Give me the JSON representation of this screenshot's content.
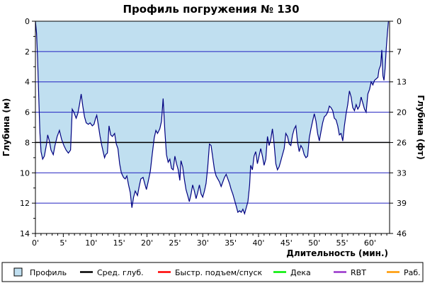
{
  "chart_data": {
    "type": "area",
    "title": "Профиль погружения № 130",
    "xlabel": "Длительность (мин.)",
    "ylabel": "Глубина (м)",
    "ylabel_right": "Глубина (фт)",
    "xlim": [
      0,
      63.5
    ],
    "ylim": [
      0,
      14
    ],
    "y_inverted": true,
    "x_ticks": [
      0,
      5,
      10,
      15,
      20,
      25,
      30,
      35,
      40,
      45,
      50,
      55,
      60
    ],
    "x_tick_labels": [
      "0'",
      "5'",
      "10'",
      "15'",
      "20'",
      "25'",
      "30'",
      "35'",
      "40'",
      "45'",
      "50'",
      "55'",
      "60'"
    ],
    "y_ticks": [
      0,
      2,
      4,
      6,
      8,
      10,
      12,
      14
    ],
    "y_tick_labels": [
      "0",
      "2",
      "4",
      "6",
      "8",
      "10",
      "12",
      "14"
    ],
    "y_ticks_right": [
      0,
      2,
      4,
      6,
      8,
      10,
      12,
      14
    ],
    "y_tick_labels_right": [
      "0",
      "7",
      "13",
      "20",
      "26",
      "33",
      "39",
      "46"
    ],
    "grid": "horizontal",
    "average_depth": 8,
    "colors": {
      "profile_fill": "#c0dff0",
      "profile_line": "#000080",
      "grid_line": "#2020c0",
      "avg_line": "#000000",
      "fast_ascent": "#ff0000",
      "deco": "#00ee00",
      "rbt": "#9933cc",
      "work": "#ff9900"
    },
    "series": [
      {
        "name": "Профиль",
        "points": [
          [
            0,
            0
          ],
          [
            0.2,
            0.8
          ],
          [
            0.4,
            2.5
          ],
          [
            0.6,
            5
          ],
          [
            0.8,
            7.3
          ],
          [
            1,
            8.6
          ],
          [
            1.3,
            9.1
          ],
          [
            1.6,
            8.9
          ],
          [
            2,
            8.1
          ],
          [
            2.2,
            7.5
          ],
          [
            2.5,
            7.9
          ],
          [
            2.8,
            8.5
          ],
          [
            3.2,
            8.8
          ],
          [
            3.5,
            8.2
          ],
          [
            3.9,
            7.6
          ],
          [
            4.3,
            7.2
          ],
          [
            4.7,
            7.8
          ],
          [
            5.1,
            8.2
          ],
          [
            5.5,
            8.5
          ],
          [
            5.9,
            8.7
          ],
          [
            6.3,
            8.5
          ],
          [
            6.6,
            5.8
          ],
          [
            6.9,
            6
          ],
          [
            7.3,
            6.4
          ],
          [
            7.6,
            6.1
          ],
          [
            7.9,
            5.5
          ],
          [
            8.2,
            4.8
          ],
          [
            8.5,
            5.6
          ],
          [
            8.8,
            6.3
          ],
          [
            9.1,
            6.7
          ],
          [
            9.5,
            6.8
          ],
          [
            9.8,
            6.7
          ],
          [
            10.2,
            6.9
          ],
          [
            10.5,
            6.8
          ],
          [
            10.8,
            6.4
          ],
          [
            11,
            6.2
          ],
          [
            11.3,
            6.9
          ],
          [
            11.6,
            7.6
          ],
          [
            11.9,
            8.2
          ],
          [
            12.2,
            8.7
          ],
          [
            12.4,
            9
          ],
          [
            12.6,
            8.8
          ],
          [
            12.9,
            8.7
          ],
          [
            13.2,
            6.9
          ],
          [
            13.5,
            7.5
          ],
          [
            13.8,
            7.6
          ],
          [
            14.2,
            7.4
          ],
          [
            14.5,
            8.1
          ],
          [
            14.8,
            8.4
          ],
          [
            15.1,
            9.4
          ],
          [
            15.4,
            10
          ],
          [
            15.8,
            10.3
          ],
          [
            16.1,
            10.4
          ],
          [
            16.4,
            10.2
          ],
          [
            16.7,
            10.8
          ],
          [
            17,
            11.3
          ],
          [
            17.3,
            12.3
          ],
          [
            17.6,
            11.6
          ],
          [
            17.9,
            11.2
          ],
          [
            18.3,
            11.5
          ],
          [
            18.6,
            10.9
          ],
          [
            18.9,
            10.4
          ],
          [
            19.3,
            10.3
          ],
          [
            19.6,
            10.7
          ],
          [
            19.9,
            11.1
          ],
          [
            20.2,
            10.6
          ],
          [
            20.6,
            9.9
          ],
          [
            20.9,
            8.9
          ],
          [
            21.3,
            7.7
          ],
          [
            21.6,
            7.2
          ],
          [
            21.9,
            7.4
          ],
          [
            22.3,
            7.1
          ],
          [
            22.6,
            6.6
          ],
          [
            22.9,
            5.1
          ],
          [
            23.2,
            7.2
          ],
          [
            23.5,
            8.8
          ],
          [
            23.8,
            9.3
          ],
          [
            24.1,
            9.1
          ],
          [
            24.4,
            9.7
          ],
          [
            24.7,
            9.8
          ],
          [
            25,
            8.9
          ],
          [
            25.3,
            9.4
          ],
          [
            25.6,
            9.8
          ],
          [
            25.9,
            10.5
          ],
          [
            26.1,
            9.2
          ],
          [
            26.4,
            9.6
          ],
          [
            26.7,
            10.4
          ],
          [
            27,
            11.1
          ],
          [
            27.3,
            11.5
          ],
          [
            27.6,
            11.9
          ],
          [
            27.9,
            11.4
          ],
          [
            28.2,
            10.8
          ],
          [
            28.5,
            11.2
          ],
          [
            28.8,
            11.7
          ],
          [
            29.1,
            11.3
          ],
          [
            29.4,
            10.8
          ],
          [
            29.7,
            11.4
          ],
          [
            30,
            11.6
          ],
          [
            30.3,
            11.2
          ],
          [
            30.6,
            10.7
          ],
          [
            30.9,
            9.6
          ],
          [
            31.2,
            8.1
          ],
          [
            31.5,
            8.2
          ],
          [
            31.8,
            9
          ],
          [
            32.1,
            9.8
          ],
          [
            32.4,
            10.2
          ],
          [
            32.7,
            10.4
          ],
          [
            33,
            10.6
          ],
          [
            33.3,
            10.9
          ],
          [
            33.6,
            10.6
          ],
          [
            33.9,
            10.3
          ],
          [
            34.2,
            10.1
          ],
          [
            34.5,
            10.4
          ],
          [
            34.8,
            10.7
          ],
          [
            35.1,
            11.1
          ],
          [
            35.4,
            11.4
          ],
          [
            35.7,
            11.8
          ],
          [
            36,
            12.2
          ],
          [
            36.3,
            12.6
          ],
          [
            36.6,
            12.5
          ],
          [
            36.9,
            12.6
          ],
          [
            37.2,
            12.4
          ],
          [
            37.5,
            12.7
          ],
          [
            37.8,
            12.3
          ],
          [
            38.1,
            11.9
          ],
          [
            38.4,
            10.8
          ],
          [
            38.6,
            9.5
          ],
          [
            38.9,
            9.8
          ],
          [
            39.2,
            8.9
          ],
          [
            39.5,
            8.6
          ],
          [
            39.8,
            9.4
          ],
          [
            40.1,
            8.9
          ],
          [
            40.4,
            8.4
          ],
          [
            40.7,
            8.9
          ],
          [
            41,
            9.5
          ],
          [
            41.3,
            9.1
          ],
          [
            41.6,
            7.6
          ],
          [
            41.9,
            8.2
          ],
          [
            42.2,
            7.8
          ],
          [
            42.5,
            7.1
          ],
          [
            42.8,
            8.1
          ],
          [
            43.1,
            9.4
          ],
          [
            43.4,
            9.8
          ],
          [
            43.7,
            9.6
          ],
          [
            44,
            9.2
          ],
          [
            44.3,
            8.8
          ],
          [
            44.6,
            8.4
          ],
          [
            44.9,
            7.4
          ],
          [
            45.2,
            7.6
          ],
          [
            45.5,
            8.1
          ],
          [
            45.8,
            8.2
          ],
          [
            46.1,
            7.5
          ],
          [
            46.4,
            7.1
          ],
          [
            46.7,
            6.9
          ],
          [
            47,
            8
          ],
          [
            47.3,
            8.6
          ],
          [
            47.6,
            8.2
          ],
          [
            47.9,
            8.4
          ],
          [
            48.2,
            8.8
          ],
          [
            48.5,
            9
          ],
          [
            48.8,
            8.9
          ],
          [
            49.1,
            7.7
          ],
          [
            49.4,
            7.1
          ],
          [
            49.7,
            6.6
          ],
          [
            50,
            6.1
          ],
          [
            50.3,
            6.6
          ],
          [
            50.6,
            7.4
          ],
          [
            50.9,
            7.9
          ],
          [
            51.2,
            7.3
          ],
          [
            51.5,
            6.7
          ],
          [
            51.8,
            6.3
          ],
          [
            52.1,
            6.2
          ],
          [
            52.4,
            6
          ],
          [
            52.7,
            5.6
          ],
          [
            53,
            5.7
          ],
          [
            53.3,
            5.9
          ],
          [
            53.6,
            6.4
          ],
          [
            53.9,
            6.5
          ],
          [
            54.2,
            6.9
          ],
          [
            54.5,
            7.5
          ],
          [
            54.8,
            7.4
          ],
          [
            55.1,
            7.9
          ],
          [
            55.4,
            6.9
          ],
          [
            55.7,
            6.1
          ],
          [
            56,
            5.5
          ],
          [
            56.3,
            4.6
          ],
          [
            56.6,
            5
          ],
          [
            56.9,
            5.7
          ],
          [
            57.2,
            5.9
          ],
          [
            57.5,
            5.5
          ],
          [
            57.8,
            5.8
          ],
          [
            58.1,
            5.6
          ],
          [
            58.4,
            5
          ],
          [
            58.7,
            5.4
          ],
          [
            59,
            5.8
          ],
          [
            59.3,
            6
          ],
          [
            59.6,
            4.8
          ],
          [
            59.9,
            4.5
          ],
          [
            60.2,
            4
          ],
          [
            60.5,
            4.2
          ],
          [
            60.8,
            3.9
          ],
          [
            61.1,
            3.8
          ],
          [
            61.4,
            3.7
          ],
          [
            61.6,
            3.2
          ],
          [
            61.9,
            2.9
          ],
          [
            62.1,
            1.9
          ],
          [
            62.3,
            3.6
          ],
          [
            62.5,
            3.9
          ],
          [
            62.7,
            3.1
          ],
          [
            62.9,
            1.8
          ],
          [
            63.1,
            0.8
          ],
          [
            63.3,
            0
          ]
        ]
      }
    ]
  },
  "legend": [
    {
      "key": "profile",
      "label": "Профиль",
      "swatch": "box",
      "color": "#c0dff0"
    },
    {
      "key": "avg",
      "label": "Сред. глуб.",
      "swatch": "line",
      "color": "#000000"
    },
    {
      "key": "fast",
      "label": "Быстр. подъем/спуск",
      "swatch": "line",
      "color": "#ff0000"
    },
    {
      "key": "deco",
      "label": "Дека",
      "swatch": "line",
      "color": "#00ee00"
    },
    {
      "key": "rbt",
      "label": "RBT",
      "swatch": "line",
      "color": "#9933cc"
    },
    {
      "key": "work",
      "label": "Раб.",
      "swatch": "line",
      "color": "#ff9900"
    }
  ]
}
